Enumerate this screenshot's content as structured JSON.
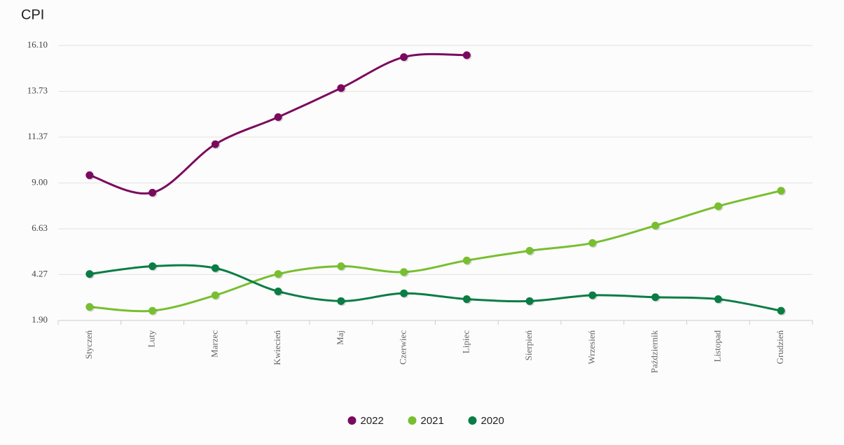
{
  "chart_data": {
    "type": "line",
    "title": "CPI",
    "categories": [
      "Styczeń",
      "Luty",
      "Marzec",
      "Kwiecień",
      "Maj",
      "Czerwiec",
      "Lipiec",
      "Sierpień",
      "Wrzesień",
      "Październik",
      "Listopad",
      "Grudzień"
    ],
    "series": [
      {
        "name": "2022",
        "color": "#7b0a5e",
        "values": [
          9.4,
          8.5,
          11.0,
          12.4,
          13.9,
          15.5,
          15.6,
          null,
          null,
          null,
          null,
          null
        ]
      },
      {
        "name": "2021",
        "color": "#77bf2f",
        "values": [
          2.6,
          2.4,
          3.2,
          4.3,
          4.7,
          4.4,
          5.0,
          5.5,
          5.9,
          6.8,
          7.8,
          8.6
        ]
      },
      {
        "name": "2020",
        "color": "#0a7d45",
        "values": [
          4.3,
          4.7,
          4.6,
          3.4,
          2.9,
          3.3,
          3.0,
          2.9,
          3.2,
          3.1,
          3.0,
          2.4
        ]
      }
    ],
    "ylim": [
      1.9,
      16.1
    ],
    "yticks": [
      {
        "value": 1.9,
        "label": "1.90"
      },
      4.27,
      6.63,
      {
        "value": 9,
        "label": "9.00"
      },
      11.37,
      13.73,
      {
        "value": 16.1,
        "label": "16.10"
      }
    ],
    "grid": true,
    "legend": "bottom"
  }
}
